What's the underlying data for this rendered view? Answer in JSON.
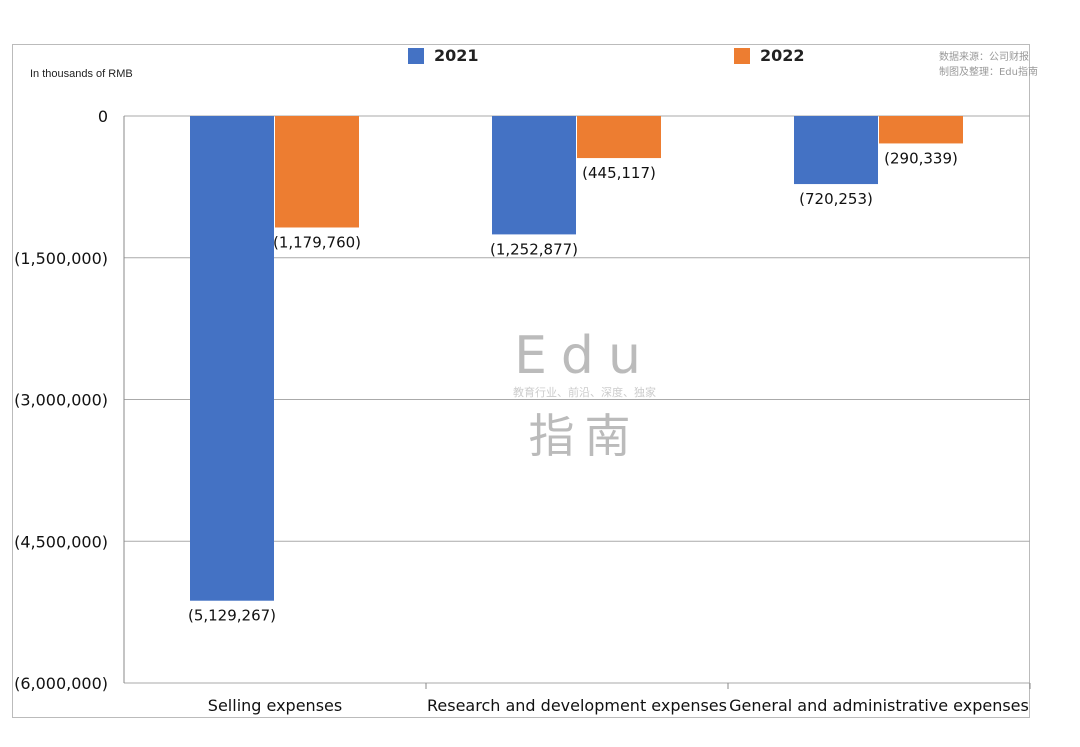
{
  "chart_data": {
    "type": "bar",
    "title": "",
    "ylabel": "In thousands of RMB",
    "categories": [
      "Selling expenses",
      "Research and development expenses",
      "General and administrative expenses"
    ],
    "series": [
      {
        "name": "2021",
        "color": "#4472C4",
        "values": [
          -5129267,
          -1252877,
          -720253
        ],
        "labels": [
          "(5,129,267)",
          "(1,252,877)",
          "(720,253)"
        ]
      },
      {
        "name": "2022",
        "color": "#ED7D31",
        "values": [
          -1179760,
          -445117,
          -290339
        ],
        "labels": [
          "(1,179,760)",
          "(445,117)",
          "(290,339)"
        ]
      }
    ],
    "ylim": [
      -6000000,
      0
    ],
    "yticks": [
      0,
      -1500000,
      -3000000,
      -4500000,
      -6000000
    ],
    "ytick_labels": [
      "0",
      "(1,500,000)",
      "(3,000,000)",
      "(4,500,000)",
      "(6,000,000)"
    ],
    "grid": true,
    "legend": "top"
  },
  "source": {
    "line1": "数据来源：公司财报",
    "line2": "制图及整理：Edu指南"
  },
  "watermark": {
    "big": "Edu",
    "tagline": "教育行业、前沿、深度、独家",
    "cn": "指南"
  }
}
